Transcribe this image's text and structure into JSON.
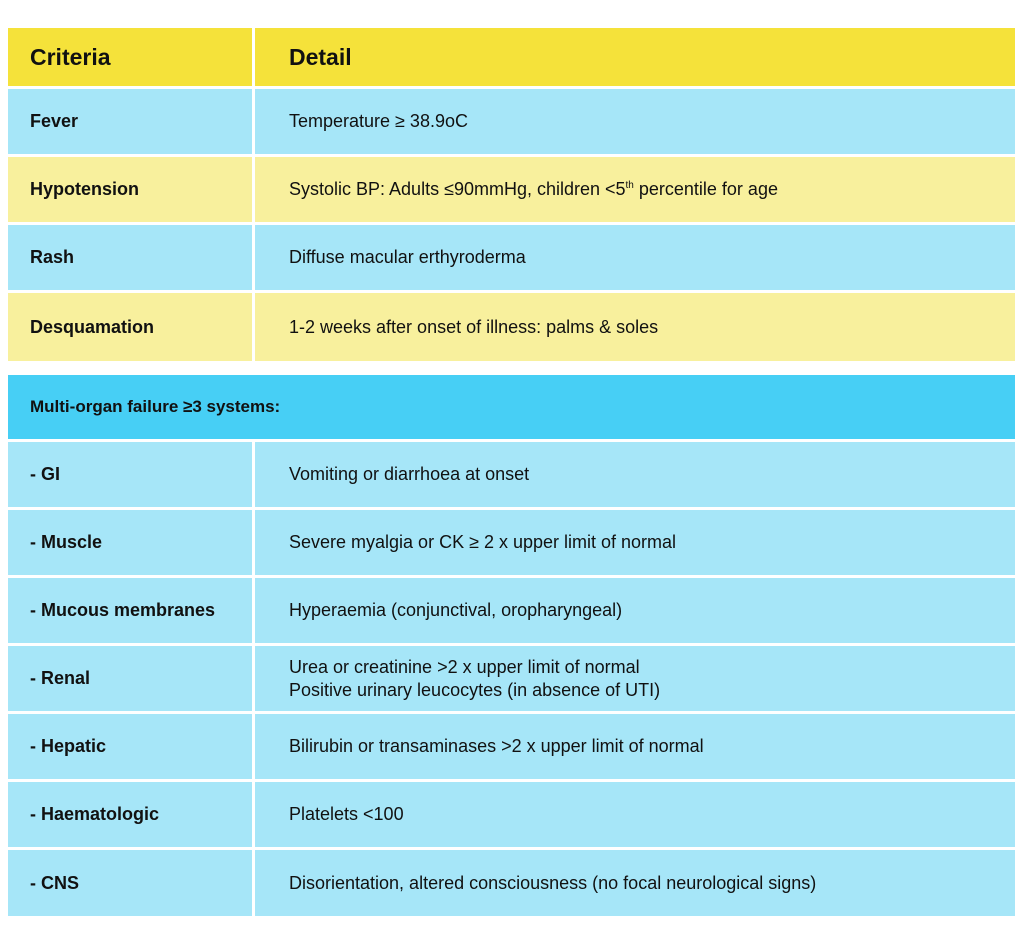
{
  "header": {
    "criteria": "Criteria",
    "detail": "Detail"
  },
  "criteria_rows": [
    {
      "label": "Fever",
      "detail": "Temperature ≥ 38.9oC"
    },
    {
      "label": "Hypotension",
      "detail_pre": "Systolic BP: Adults ≤90mmHg, children <5",
      "detail_sup": "th",
      "detail_post": " percentile for age"
    },
    {
      "label": "Rash",
      "detail": "Diffuse macular erthyroderma"
    },
    {
      "label": "Desquamation",
      "detail": "1-2 weeks after onset of illness: palms & soles"
    }
  ],
  "section_title": "Multi-organ failure ≥3 systems:",
  "organ_rows": [
    {
      "label": "- GI",
      "detail": "Vomiting or diarrhoea at onset"
    },
    {
      "label": "- Muscle",
      "detail": "Severe myalgia or CK ≥ 2 x upper limit of normal"
    },
    {
      "label": "- Mucous membranes",
      "detail": "Hyperaemia (conjunctival, oropharyngeal)"
    },
    {
      "label": "- Renal",
      "detail_line1": "Urea or creatinine >2 x upper limit of normal",
      "detail_line2": "Positive urinary leucocytes (in absence of UTI)"
    },
    {
      "label": "- Hepatic",
      "detail": "Bilirubin or transaminases >2 x upper limit of normal"
    },
    {
      "label": "- Haematologic",
      "detail": "Platelets <100"
    },
    {
      "label": "- CNS",
      "detail": "Disorientation, altered consciousness (no focal neurological signs)"
    }
  ],
  "colors": {
    "header": "#f5e23a",
    "row_blue": "#a6e6f8",
    "row_yellow": "#f8f09d",
    "section": "#47cff5"
  }
}
